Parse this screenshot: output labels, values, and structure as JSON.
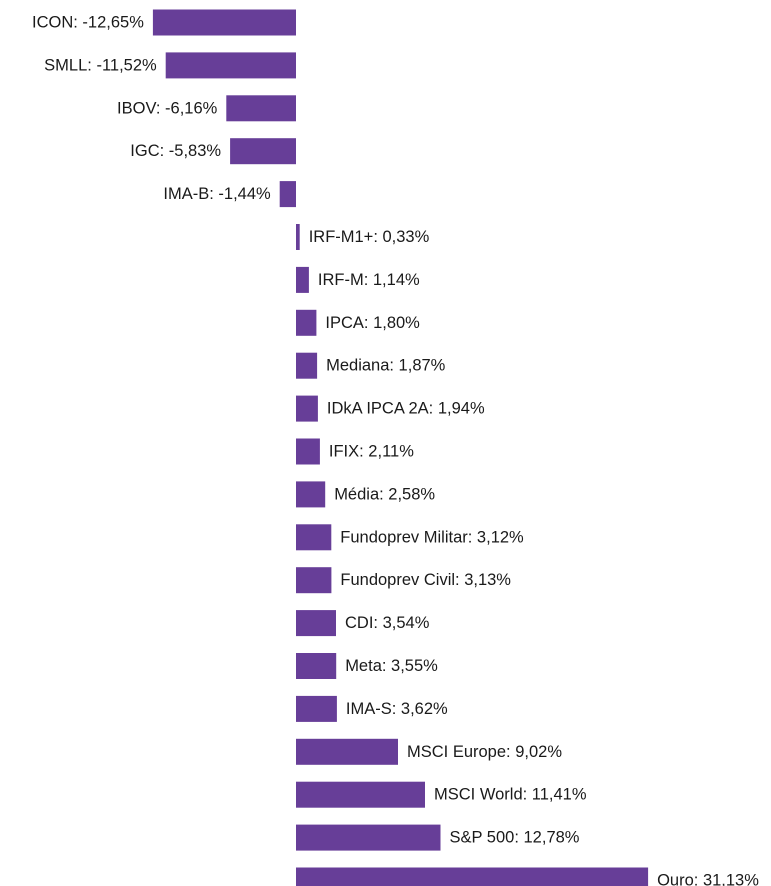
{
  "chart_data": {
    "type": "bar",
    "orientation": "horizontal",
    "bar_color": "#673e98",
    "label_format": "{category}: {value}%",
    "categories": [
      "ICON",
      "SMLL",
      "IBOV",
      "IGC",
      "IMA-B",
      "IRF-M1+",
      "IRF-M",
      "IPCA",
      "Mediana",
      "IDkA IPCA 2A",
      "IFIX",
      "Média",
      "Fundoprev Militar",
      "Fundoprev Civil",
      "CDI",
      "Meta",
      "IMA-S",
      "MSCI Europe",
      "MSCI World",
      "S&P 500",
      "Ouro"
    ],
    "values": [
      -12.65,
      -11.52,
      -6.16,
      -5.83,
      -1.44,
      0.33,
      1.14,
      1.8,
      1.87,
      1.94,
      2.11,
      2.58,
      3.12,
      3.13,
      3.54,
      3.55,
      3.62,
      9.02,
      11.41,
      12.78,
      31.13
    ],
    "labels": [
      "ICON: -12,65%",
      "SMLL: -11,52%",
      "IBOV: -6,16%",
      "IGC: -5,83%",
      "IMA-B: -1,44%",
      "IRF-M1+: 0,33%",
      "IRF-M: 1,14%",
      "IPCA: 1,80%",
      "Mediana: 1,87%",
      "IDkA IPCA 2A: 1,94%",
      "IFIX: 2,11%",
      "Média: 2,58%",
      "Fundoprev Militar: 3,12%",
      "Fundoprev Civil: 3,13%",
      "CDI: 3,54%",
      "Meta: 3,55%",
      "IMA-S: 3,62%",
      "MSCI Europe: 9,02%",
      "MSCI World: 11,41%",
      "S&P 500: 12,78%",
      "Ouro: 31,13%"
    ],
    "grid": false,
    "legend": "none",
    "title": "",
    "xlabel": "",
    "ylabel": ""
  }
}
